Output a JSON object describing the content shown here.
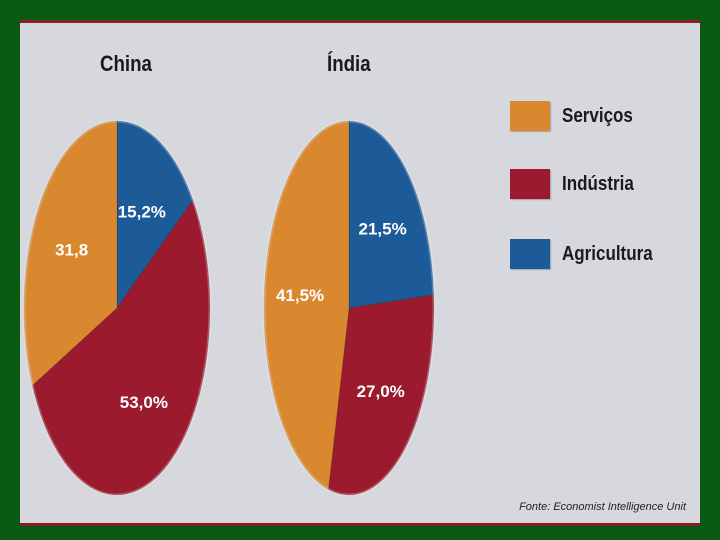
{
  "colors": {
    "servicos": "#d9882f",
    "industria": "#9b1a2e",
    "agricultura": "#1d5a98"
  },
  "chart_data": [
    {
      "type": "pie",
      "title": "China",
      "slices": [
        {
          "category": "Agricultura",
          "value": 15.2,
          "label": "15,2%"
        },
        {
          "category": "Indústria",
          "value": 53.0,
          "label": "53,0%"
        },
        {
          "category": "Serviços",
          "value": 31.8,
          "label": "31,8"
        }
      ]
    },
    {
      "type": "pie",
      "title": "Índia",
      "slices": [
        {
          "category": "Agricultura",
          "value": 21.5,
          "label": "21,5%"
        },
        {
          "category": "Indústria",
          "value": 27.0,
          "label": "27,0%"
        },
        {
          "category": "Serviços",
          "value": 41.5,
          "label": "41,5%"
        }
      ]
    }
  ],
  "legend": [
    {
      "label": "Serviços",
      "key": "servicos"
    },
    {
      "label": "Indústria",
      "key": "industria"
    },
    {
      "label": "Agricultura",
      "key": "agricultura"
    }
  ],
  "source": "Fonte: Economist Intelligence Unit"
}
